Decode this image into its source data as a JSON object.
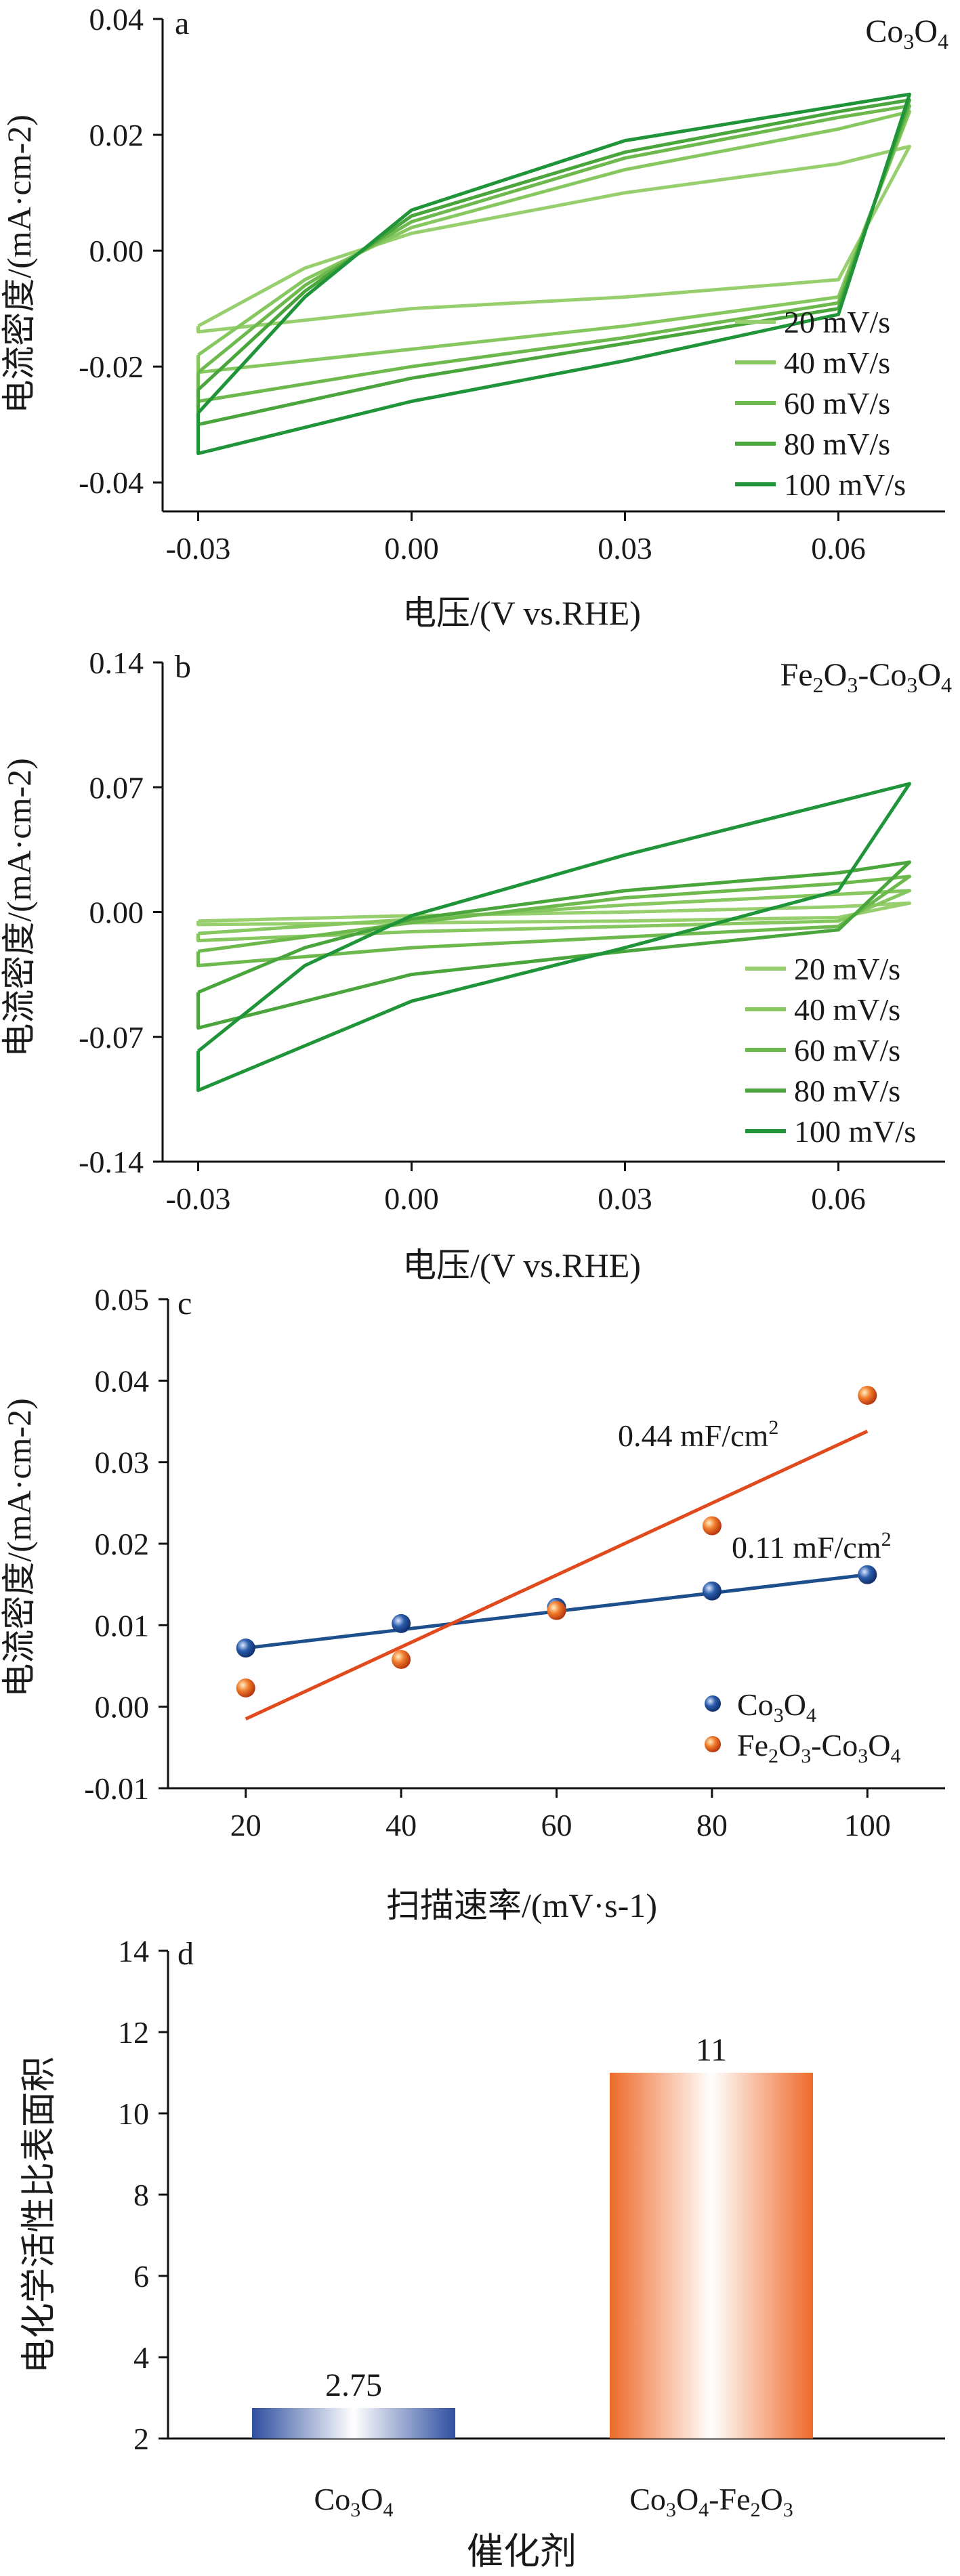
{
  "chart_data": [
    {
      "type": "line",
      "panel_label": "a",
      "material": "Co3O4",
      "xlabel": "电压/(V vs.RHE)",
      "ylabel": "电流密度/(mA·cm-2)",
      "xlim": [
        -0.035,
        0.075
      ],
      "ylim": [
        -0.045,
        0.04
      ],
      "xticks": [
        "-0.03",
        "0.00",
        "0.03",
        "0.06"
      ],
      "xtick_values": [
        -0.03,
        0.0,
        0.03,
        0.06
      ],
      "yticks": [
        "0.04",
        "0.02",
        "0.00",
        "-0.02",
        "-0.04"
      ],
      "ytick_values": [
        0.04,
        0.02,
        0.0,
        -0.02,
        -0.04
      ],
      "legend_position": "bottom-right",
      "series": [
        {
          "name": "20 mV/s",
          "color": "#97cf6e",
          "anodic": [
            [
              -0.03,
              -0.013
            ],
            [
              -0.015,
              -0.003
            ],
            [
              0.0,
              0.003
            ],
            [
              0.03,
              0.01
            ],
            [
              0.06,
              0.015
            ],
            [
              0.07,
              0.018
            ]
          ],
          "cathodic": [
            [
              0.07,
              0.008
            ],
            [
              0.06,
              -0.005
            ],
            [
              0.03,
              -0.008
            ],
            [
              0.0,
              -0.01
            ],
            [
              -0.03,
              -0.014
            ]
          ]
        },
        {
          "name": "40 mV/s",
          "color": "#86c760",
          "anodic": [
            [
              -0.03,
              -0.018
            ],
            [
              -0.015,
              -0.005
            ],
            [
              0.0,
              0.004
            ],
            [
              0.03,
              0.014
            ],
            [
              0.06,
              0.021
            ],
            [
              0.07,
              0.024
            ]
          ],
          "cathodic": [
            [
              0.07,
              0.009
            ],
            [
              0.06,
              -0.008
            ],
            [
              0.03,
              -0.013
            ],
            [
              0.0,
              -0.017
            ],
            [
              -0.03,
              -0.021
            ]
          ]
        },
        {
          "name": "60 mV/s",
          "color": "#6db94e",
          "anodic": [
            [
              -0.03,
              -0.021
            ],
            [
              -0.015,
              -0.006
            ],
            [
              0.0,
              0.005
            ],
            [
              0.03,
              0.016
            ],
            [
              0.06,
              0.023
            ],
            [
              0.07,
              0.025
            ]
          ],
          "cathodic": [
            [
              0.07,
              0.01
            ],
            [
              0.06,
              -0.009
            ],
            [
              0.03,
              -0.015
            ],
            [
              0.0,
              -0.02
            ],
            [
              -0.03,
              -0.026
            ]
          ]
        },
        {
          "name": "80 mV/s",
          "color": "#4aa63c",
          "anodic": [
            [
              -0.03,
              -0.024
            ],
            [
              -0.015,
              -0.007
            ],
            [
              0.0,
              0.006
            ],
            [
              0.03,
              0.017
            ],
            [
              0.06,
              0.024
            ],
            [
              0.07,
              0.026
            ]
          ],
          "cathodic": [
            [
              0.07,
              0.011
            ],
            [
              0.06,
              -0.01
            ],
            [
              0.03,
              -0.016
            ],
            [
              0.0,
              -0.022
            ],
            [
              -0.03,
              -0.03
            ]
          ]
        },
        {
          "name": "100 mV/s",
          "color": "#1f9438",
          "anodic": [
            [
              -0.03,
              -0.028
            ],
            [
              -0.015,
              -0.008
            ],
            [
              0.0,
              0.007
            ],
            [
              0.03,
              0.019
            ],
            [
              0.06,
              0.025
            ],
            [
              0.07,
              0.027
            ]
          ],
          "cathodic": [
            [
              0.07,
              0.012
            ],
            [
              0.06,
              -0.011
            ],
            [
              0.03,
              -0.019
            ],
            [
              0.0,
              -0.026
            ],
            [
              -0.03,
              -0.035
            ]
          ]
        }
      ]
    },
    {
      "type": "line",
      "panel_label": "b",
      "material": "Fe2O3-Co3O4",
      "xlabel": "电压/(V vs.RHE)",
      "ylabel": "电流密度/(mA·cm-2)",
      "xlim": [
        -0.035,
        0.075
      ],
      "ylim": [
        -0.14,
        0.14
      ],
      "xticks": [
        "-0.03",
        "0.00",
        "0.03",
        "0.06"
      ],
      "xtick_values": [
        -0.03,
        0.0,
        0.03,
        0.06
      ],
      "yticks": [
        "0.14",
        "0.07",
        "0.00",
        "-0.07",
        "-0.14"
      ],
      "ytick_values": [
        0.14,
        0.07,
        0.0,
        -0.07,
        -0.14
      ],
      "legend_position": "bottom-right",
      "series": [
        {
          "name": "20 mV/s",
          "color": "#97cf6e",
          "anodic": [
            [
              -0.03,
              -0.005
            ],
            [
              0.0,
              -0.002
            ],
            [
              0.03,
              0.0
            ],
            [
              0.06,
              0.003
            ],
            [
              0.07,
              0.005
            ]
          ],
          "cathodic": [
            [
              0.07,
              0.001
            ],
            [
              0.06,
              -0.003
            ],
            [
              0.03,
              -0.005
            ],
            [
              0.0,
              -0.006
            ],
            [
              -0.03,
              -0.007
            ]
          ]
        },
        {
          "name": "40 mV/s",
          "color": "#86c760",
          "anodic": [
            [
              -0.03,
              -0.012
            ],
            [
              0.0,
              -0.004
            ],
            [
              0.03,
              0.004
            ],
            [
              0.06,
              0.01
            ],
            [
              0.07,
              0.012
            ]
          ],
          "cathodic": [
            [
              0.07,
              0.003
            ],
            [
              0.06,
              -0.005
            ],
            [
              0.03,
              -0.008
            ],
            [
              0.0,
              -0.011
            ],
            [
              -0.03,
              -0.016
            ]
          ]
        },
        {
          "name": "60 mV/s",
          "color": "#6db94e",
          "anodic": [
            [
              -0.03,
              -0.022
            ],
            [
              0.0,
              -0.006
            ],
            [
              0.03,
              0.008
            ],
            [
              0.06,
              0.016
            ],
            [
              0.07,
              0.02
            ]
          ],
          "cathodic": [
            [
              0.07,
              0.004
            ],
            [
              0.06,
              -0.008
            ],
            [
              0.03,
              -0.014
            ],
            [
              0.0,
              -0.02
            ],
            [
              -0.03,
              -0.03
            ]
          ]
        },
        {
          "name": "80 mV/s",
          "color": "#4aa63c",
          "anodic": [
            [
              -0.03,
              -0.045
            ],
            [
              -0.015,
              -0.02
            ],
            [
              0.0,
              -0.004
            ],
            [
              0.03,
              0.012
            ],
            [
              0.06,
              0.022
            ],
            [
              0.07,
              0.028
            ]
          ],
          "cathodic": [
            [
              0.07,
              0.006
            ],
            [
              0.06,
              -0.01
            ],
            [
              0.03,
              -0.022
            ],
            [
              0.0,
              -0.035
            ],
            [
              -0.03,
              -0.065
            ]
          ]
        },
        {
          "name": "100 mV/s",
          "color": "#1f9438",
          "anodic": [
            [
              -0.03,
              -0.078
            ],
            [
              -0.015,
              -0.03
            ],
            [
              0.0,
              -0.002
            ],
            [
              0.03,
              0.032
            ],
            [
              0.06,
              0.062
            ],
            [
              0.07,
              0.072
            ]
          ],
          "cathodic": [
            [
              0.07,
              0.045
            ],
            [
              0.06,
              0.012
            ],
            [
              0.03,
              -0.02
            ],
            [
              0.0,
              -0.05
            ],
            [
              -0.03,
              -0.1
            ]
          ]
        }
      ]
    },
    {
      "type": "scatter",
      "panel_label": "c",
      "xlabel": "扫描速率/(mV·s-1)",
      "ylabel": "电流密度/(mA·cm-2)",
      "xlim": [
        10,
        110
      ],
      "ylim": [
        -0.01,
        0.05
      ],
      "xticks": [
        "20",
        "40",
        "60",
        "80",
        "100"
      ],
      "xtick_values": [
        20,
        40,
        60,
        80,
        100
      ],
      "yticks": [
        "0.05",
        "0.04",
        "0.03",
        "0.02",
        "0.01",
        "0.00",
        "-0.01"
      ],
      "ytick_values": [
        0.05,
        0.04,
        0.03,
        0.02,
        0.01,
        0.0,
        -0.01
      ],
      "legend_position": "bottom-right",
      "series": [
        {
          "name": "Co3O4",
          "color": "#2a5cab",
          "line_color": "#1c4f8c",
          "x": [
            20,
            40,
            60,
            80,
            100
          ],
          "y": [
            0.0072,
            0.0102,
            0.0122,
            0.0142,
            0.0162
          ],
          "fit": [
            [
              20,
              0.0072
            ],
            [
              100,
              0.0162
            ]
          ],
          "slope_label": "0.11 mF/cm2"
        },
        {
          "name": "Fe2O3-Co3O4",
          "color": "#e2561f",
          "line_color": "#e04a1c",
          "x": [
            20,
            40,
            60,
            80,
            100
          ],
          "y": [
            0.0023,
            0.0058,
            0.0118,
            0.0222,
            0.0382
          ],
          "fit": [
            [
              20,
              -0.0015
            ],
            [
              100,
              0.0338
            ]
          ],
          "slope_label": "0.44 mF/cm2"
        }
      ]
    },
    {
      "type": "bar",
      "panel_label": "d",
      "xlabel": "催化剂",
      "ylabel": "电化学活性比表面积",
      "ylim": [
        2,
        14
      ],
      "yticks": [
        "14",
        "12",
        "10",
        "8",
        "6",
        "4",
        "2"
      ],
      "ytick_values": [
        14,
        12,
        10,
        8,
        6,
        4,
        2
      ],
      "categories": [
        "Co3O4",
        "Co3O4-Fe2O3"
      ],
      "values": [
        2.75,
        11
      ],
      "value_labels": [
        "2.75",
        "11"
      ],
      "colors": [
        "#2f4fa0",
        "#ee6a2a"
      ]
    }
  ]
}
